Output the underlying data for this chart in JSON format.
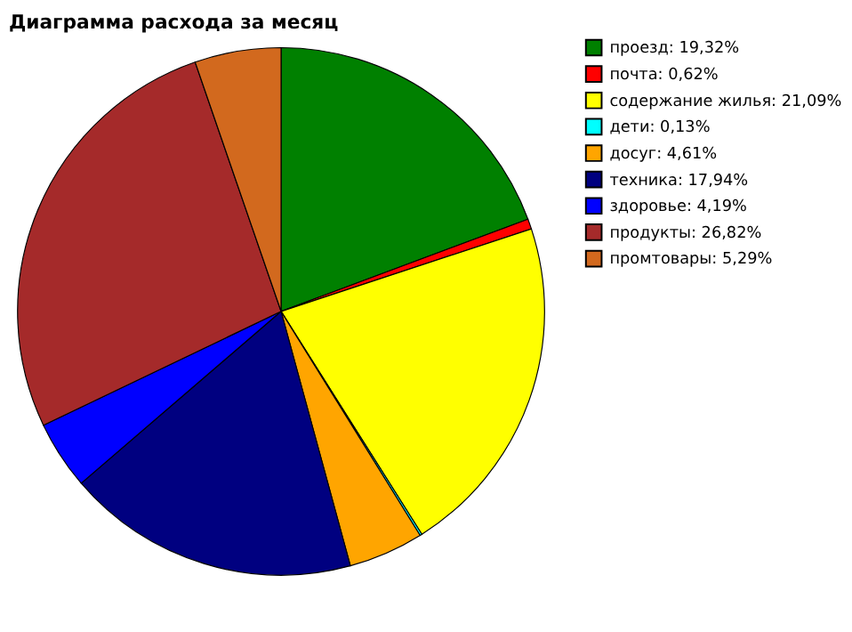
{
  "chart_data": {
    "type": "pie",
    "title": "Диаграмма расхода за месяц",
    "categories": [
      "проезд",
      "почта",
      "содержание жилья",
      "дети",
      "досуг",
      "техника",
      "здоровье",
      "продукты",
      "промтовары"
    ],
    "values": [
      19.32,
      0.62,
      21.09,
      0.13,
      4.61,
      17.94,
      4.19,
      26.82,
      5.29
    ],
    "value_labels": [
      "19,32%",
      "0,62%",
      "21,09%",
      "0,13%",
      "4,61%",
      "17,94%",
      "4,19%",
      "26,82%",
      "5,29%"
    ],
    "colors": [
      "#008000",
      "#ff0000",
      "#ffff00",
      "#00ffff",
      "#ffa500",
      "#000080",
      "#0000ff",
      "#a52a2a",
      "#d2691e"
    ],
    "legend": "right"
  }
}
